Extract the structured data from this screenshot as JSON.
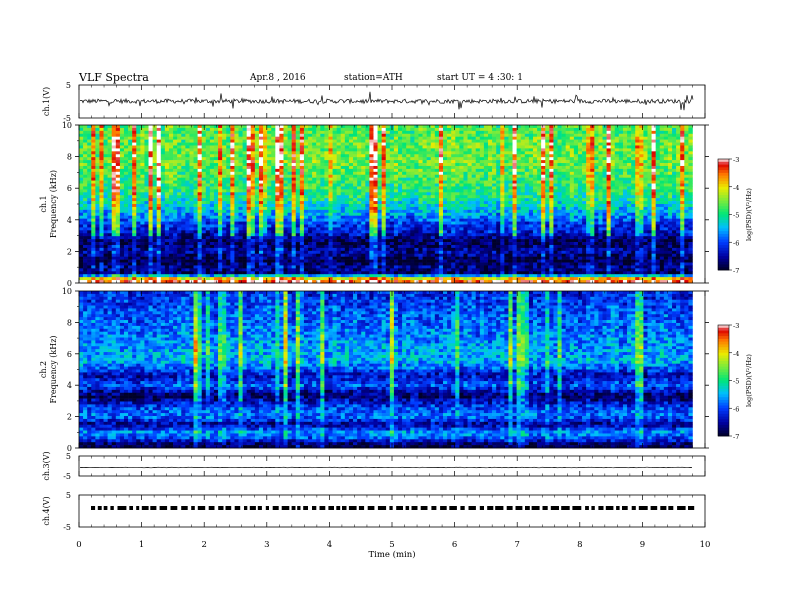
{
  "header": {
    "title": "VLF Spectra",
    "date": "Apr.8 , 2016",
    "station": "station=ATH",
    "start": "start UT = 4 :30: 1"
  },
  "chart_data": [
    {
      "type": "line",
      "name": "ch1-waveform",
      "ylabel": "ch.1(V)",
      "ylim": [
        -5,
        5
      ],
      "yticks": [
        "5",
        "-5"
      ],
      "xlim": [
        0,
        10
      ]
    },
    {
      "type": "heatmap",
      "name": "ch1-spectrogram",
      "ylabel_channel": "ch.1",
      "ylabel": "Frequency (kHz)",
      "ylim": [
        0,
        10
      ],
      "yticks": [
        "0",
        "2",
        "4",
        "6",
        "8",
        "10"
      ],
      "xlim": [
        0,
        9.8
      ],
      "colorbar": {
        "label": "log(PSD)(V²/Hz)",
        "range": [
          -7,
          -3
        ],
        "ticks": [
          "-3",
          "-4",
          "-5",
          "-6",
          "-7"
        ]
      },
      "band_profile": [
        {
          "f": 0.2,
          "level": -3.3
        },
        {
          "f": 0.6,
          "level": -6.8
        },
        {
          "f": 1.0,
          "level": -6.6
        },
        {
          "f": 1.4,
          "level": -6.9
        },
        {
          "f": 2.0,
          "level": -6.5
        },
        {
          "f": 2.6,
          "level": -6.9
        },
        {
          "f": 3.2,
          "level": -6.3
        },
        {
          "f": 3.8,
          "level": -6.0
        },
        {
          "f": 4.5,
          "level": -5.5
        },
        {
          "f": 5.5,
          "level": -5.0
        },
        {
          "f": 6.5,
          "level": -4.8
        },
        {
          "f": 7.5,
          "level": -4.6
        },
        {
          "f": 8.5,
          "level": -4.6
        },
        {
          "f": 9.5,
          "level": -4.7
        }
      ]
    },
    {
      "type": "heatmap",
      "name": "ch2-spectrogram",
      "ylabel_channel": "ch.2",
      "ylabel": "Frequency (kHz)",
      "ylim": [
        0,
        10
      ],
      "yticks": [
        "0",
        "2",
        "4",
        "6",
        "8",
        "10"
      ],
      "xlim": [
        0,
        9.8
      ],
      "colorbar": {
        "label": "log(PSD)(V²/Hz)",
        "range": [
          -7,
          -3
        ],
        "ticks": [
          "-3",
          "-4",
          "-5",
          "-6",
          "-7"
        ]
      },
      "band_profile": [
        {
          "f": 0.2,
          "level": -6.9
        },
        {
          "f": 0.6,
          "level": -6.0
        },
        {
          "f": 1.0,
          "level": -5.6
        },
        {
          "f": 1.5,
          "level": -6.6
        },
        {
          "f": 2.0,
          "level": -5.8
        },
        {
          "f": 2.6,
          "level": -6.0
        },
        {
          "f": 3.3,
          "level": -6.8
        },
        {
          "f": 4.0,
          "level": -5.9
        },
        {
          "f": 4.6,
          "level": -6.4
        },
        {
          "f": 5.5,
          "level": -5.5
        },
        {
          "f": 6.5,
          "level": -5.6
        },
        {
          "f": 7.5,
          "level": -5.8
        },
        {
          "f": 8.5,
          "level": -5.9
        },
        {
          "f": 9.5,
          "level": -6.1
        }
      ]
    },
    {
      "type": "line",
      "name": "ch3-waveform",
      "ylabel": "ch.3(V)",
      "ylim": [
        -5,
        5
      ],
      "yticks": [
        "5",
        "-5"
      ],
      "xlim": [
        0,
        10
      ]
    },
    {
      "type": "line",
      "name": "ch4-waveform",
      "ylabel": "ch.4(V)",
      "ylim": [
        -5,
        5
      ],
      "yticks": [
        "5",
        "-5"
      ],
      "xlim": [
        0,
        10
      ],
      "xlabel": "Time (min)",
      "xticks": [
        "0",
        "1",
        "2",
        "3",
        "4",
        "5",
        "6",
        "7",
        "8",
        "9",
        "10"
      ]
    }
  ]
}
